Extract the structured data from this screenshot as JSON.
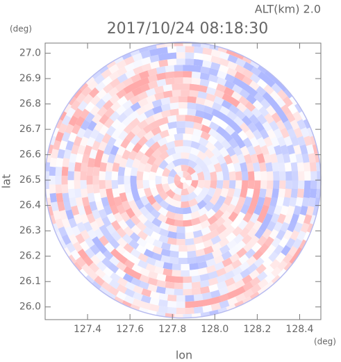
{
  "chart_data": {
    "type": "radar-image",
    "title": "2017/10/24 08:18:30",
    "altitude_label": "ALT(km) 2.0",
    "xlabel": "lon",
    "ylabel": "lat",
    "x_unit": "(deg)",
    "y_unit": "(deg)",
    "xlim": [
      127.2,
      128.5
    ],
    "ylim": [
      25.95,
      27.04
    ],
    "xticks": [
      127.4,
      127.6,
      127.8,
      {
        "value": 128.0,
        "label": "128.0"
      },
      128.2,
      128.4
    ],
    "yticks": [
      {
        "value": 26.0,
        "label": "26.0"
      },
      26.1,
      26.2,
      26.3,
      26.4,
      26.5,
      26.6,
      26.7,
      26.8,
      26.9,
      {
        "value": 27.0,
        "label": "27.0"
      }
    ],
    "center": [
      127.85,
      26.5
    ]
  }
}
